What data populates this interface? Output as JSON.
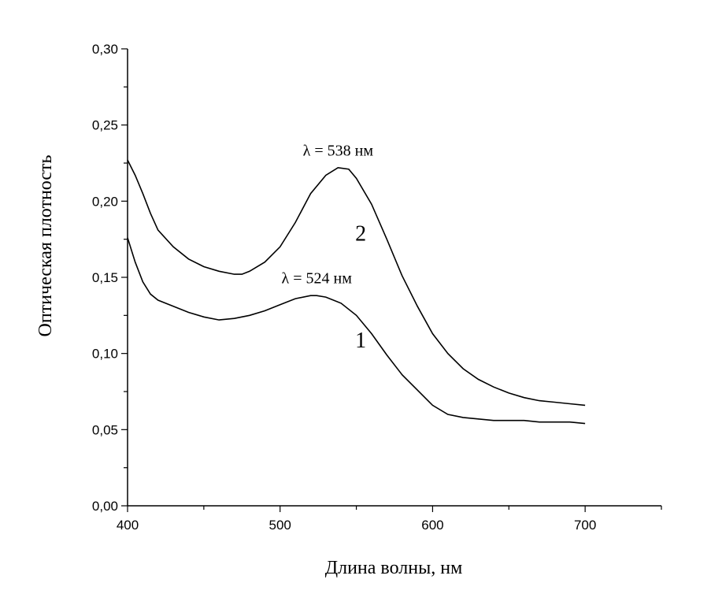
{
  "chart_data": {
    "type": "line",
    "title": "",
    "xlabel": "Длина волны, нм",
    "ylabel": "Оптическая плотность",
    "xlim": [
      400,
      750
    ],
    "ylim": [
      0.0,
      0.3
    ],
    "x_ticks": [
      400,
      500,
      600,
      700
    ],
    "x_tick_labels": [
      "400",
      "500",
      "600",
      "700"
    ],
    "y_ticks": [
      0.0,
      0.05,
      0.1,
      0.15,
      0.2,
      0.25,
      0.3
    ],
    "y_tick_labels": [
      "0,00",
      "0,05",
      "0,10",
      "0,15",
      "0,20",
      "0,25",
      "0,30"
    ],
    "grid": false,
    "series": [
      {
        "name": "1",
        "x": [
          400,
          405,
          410,
          415,
          420,
          430,
          440,
          450,
          460,
          470,
          480,
          490,
          500,
          510,
          520,
          524,
          530,
          540,
          550,
          560,
          570,
          580,
          590,
          600,
          610,
          620,
          630,
          640,
          650,
          660,
          670,
          680,
          690,
          700
        ],
        "y": [
          0.176,
          0.16,
          0.147,
          0.139,
          0.135,
          0.131,
          0.127,
          0.124,
          0.122,
          0.123,
          0.125,
          0.128,
          0.132,
          0.136,
          0.138,
          0.138,
          0.137,
          0.133,
          0.125,
          0.113,
          0.099,
          0.086,
          0.076,
          0.066,
          0.06,
          0.058,
          0.057,
          0.056,
          0.056,
          0.056,
          0.055,
          0.055,
          0.055,
          0.054
        ]
      },
      {
        "name": "2",
        "x": [
          400,
          405,
          410,
          415,
          420,
          430,
          440,
          450,
          460,
          470,
          475,
          480,
          490,
          500,
          510,
          520,
          530,
          538,
          545,
          550,
          560,
          570,
          580,
          590,
          600,
          610,
          620,
          630,
          640,
          650,
          660,
          670,
          680,
          690,
          700
        ],
        "y": [
          0.227,
          0.217,
          0.205,
          0.192,
          0.181,
          0.17,
          0.162,
          0.157,
          0.154,
          0.152,
          0.152,
          0.154,
          0.16,
          0.17,
          0.186,
          0.205,
          0.217,
          0.222,
          0.221,
          0.215,
          0.198,
          0.175,
          0.151,
          0.131,
          0.113,
          0.1,
          0.09,
          0.083,
          0.078,
          0.074,
          0.071,
          0.069,
          0.068,
          0.067,
          0.066
        ]
      }
    ],
    "curve_labels": [
      {
        "text": "1",
        "x": 588,
        "y": 0.104
      },
      {
        "text": "2",
        "x": 588,
        "y": 0.174
      }
    ],
    "annotations": [
      {
        "text": "λ = 538 нм",
        "x": 538,
        "y": 0.23
      },
      {
        "text": "λ = 524 нм",
        "x": 524,
        "y": 0.146
      }
    ]
  }
}
